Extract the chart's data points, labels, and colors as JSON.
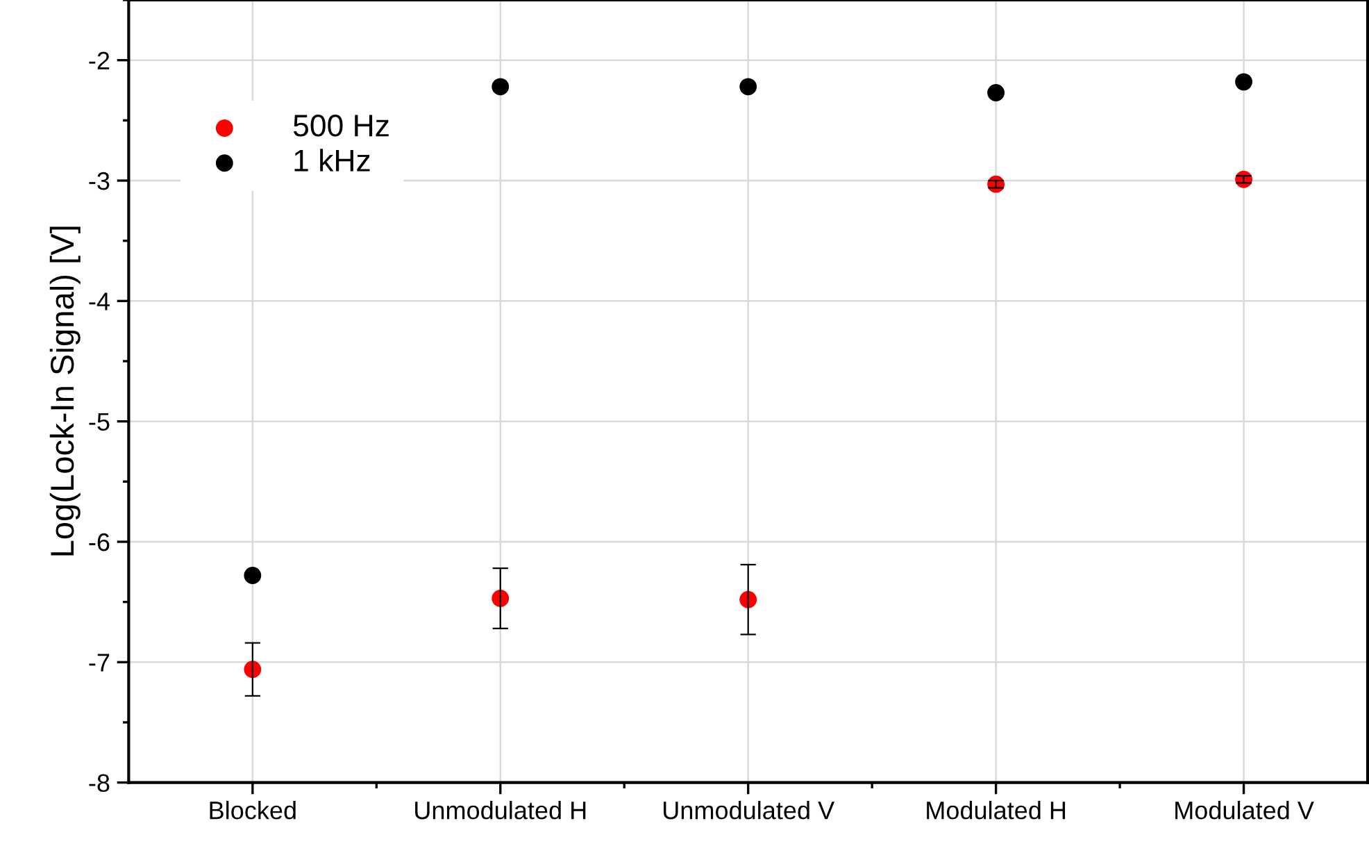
{
  "chart_data": {
    "type": "scatter",
    "ylabel": "Log(Lock-In Signal) [V]",
    "categories": [
      "Blocked",
      "Unmodulated H",
      "Unmodulated V",
      "Modulated H",
      "Modulated V"
    ],
    "series": [
      {
        "name": "500 Hz",
        "color": "#ff0000",
        "values": [
          -7.06,
          -6.47,
          -6.48,
          -3.03,
          -2.99
        ],
        "errors": [
          0.22,
          0.25,
          0.29,
          0.03,
          0.03
        ]
      },
      {
        "name": "1 kHz",
        "color": "#000000",
        "values": [
          -6.28,
          -2.22,
          -2.22,
          -2.27,
          -2.18
        ]
      }
    ],
    "ylim": [
      -8,
      -1.5
    ],
    "yticks": [
      -8,
      -7,
      -6,
      -5,
      -4,
      -3,
      -2
    ],
    "grid": true,
    "legend": "top left",
    "marker": "circle"
  }
}
